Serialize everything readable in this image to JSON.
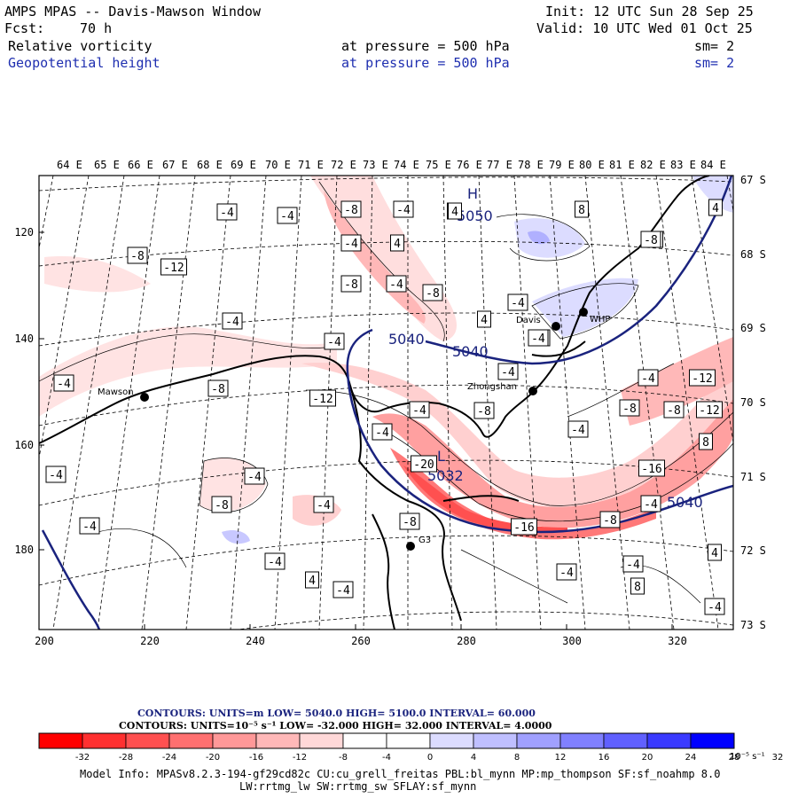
{
  "header": {
    "title": "AMPS MPAS -- Davis-Mawson Window",
    "init": "Init: 12 UTC Sun 28 Sep 25",
    "fcst_label": "Fcst:",
    "fcst_value": "70 h",
    "valid": "Valid: 10 UTC Wed 01 Oct 25",
    "field1": {
      "name": "Relative vorticity",
      "pressure": "at pressure =  500 hPa",
      "sm": "sm= 2"
    },
    "field2": {
      "name": "Geopotential height",
      "pressure": "at pressure =  500 hPa",
      "sm": "sm= 2"
    }
  },
  "map": {
    "top_lon_labels": [
      "64 E",
      "65 E",
      "66 E",
      "67 E",
      "68 E",
      "69 E",
      "70 E",
      "71 E",
      "72 E",
      "73 E",
      "74 E",
      "75 E",
      "76 E",
      "77 E",
      "78 E",
      "79 E",
      "80 E",
      "81 E",
      "82 E",
      "83 E",
      "84 E"
    ],
    "right_lat_labels": [
      "67 S",
      "68 S",
      "69 S",
      "70 S",
      "71 S",
      "72 S",
      "73 S"
    ],
    "left_y_labels": [
      "120",
      "140",
      "160",
      "180"
    ],
    "bottom_x_labels": [
      "200",
      "220",
      "240",
      "260",
      "280",
      "300",
      "320"
    ],
    "stations": [
      {
        "name": "Mawson"
      },
      {
        "name": "Davis"
      },
      {
        "name": "WHP"
      },
      {
        "name": "Zhongshan"
      },
      {
        "name": "G3"
      }
    ],
    "height_labels": [
      "5040",
      "5040",
      "5040",
      "5050",
      "5032"
    ],
    "high_low": [
      "H",
      "L"
    ],
    "vorticity_labels": [
      "-4",
      "-4",
      "-8",
      "-4",
      "4",
      "-8",
      "-12",
      "-4",
      "4",
      "-8",
      "-4",
      "-8",
      "-4",
      "-4",
      "4",
      "-4",
      "-8",
      "-4",
      "-8",
      "-12",
      "-4",
      "-4",
      "-8",
      "-20",
      "-4",
      "-4",
      "-8",
      "-4",
      "-8",
      "-4",
      "4",
      "-4",
      "-4",
      "8",
      "4",
      "4",
      "4",
      "8",
      "8",
      "-8",
      "-12",
      "-8",
      "-12",
      "-4",
      "-16",
      "-4",
      "-8",
      "-16",
      "-4",
      "-4",
      "-4",
      "8",
      "-4",
      "4",
      "-4",
      "-4",
      "-8"
    ]
  },
  "footer": {
    "contours1": "CONTOURS:  UNITS=m  LOW=  5040.0       HIGH=  5100.0      INTERVAL=    60.000",
    "contours2": "CONTOURS:  UNITS=10⁻⁵ s⁻¹  LOW=  -32.000       HIGH=  32.000      INTERVAL=    4.0000",
    "colorbar_ticks": [
      "-32",
      "-28",
      "-24",
      "-20",
      "-16",
      "-12",
      "-8",
      "-4",
      "0",
      "4",
      "8",
      "12",
      "16",
      "20",
      "24",
      "28",
      "32"
    ],
    "colorbar_unit": "10⁻⁵ s⁻¹",
    "colorbar_colors": [
      "#ff0000",
      "#ff3030",
      "#ff5050",
      "#ff7070",
      "#ff9898",
      "#ffb8b8",
      "#ffd8d8",
      "#ffffff",
      "#ffffff",
      "#dcdcff",
      "#bfbfff",
      "#a0a0ff",
      "#8080ff",
      "#6060ff",
      "#3a3aff",
      "#0000ff"
    ],
    "model_info1": "Model Info: MPASv8.2.3-194-gf29cd82c CU:cu_grell_freitas PBL:bl_mynn MP:mp_thompson SF:sf_noahmp 8.0",
    "model_info2": "LW:rrtmg_lw SW:rrtmg_sw SFLAY:sf_mynn"
  },
  "colors": {
    "height_contour": "#1a237e",
    "header_blue": "#1f2fb0"
  }
}
